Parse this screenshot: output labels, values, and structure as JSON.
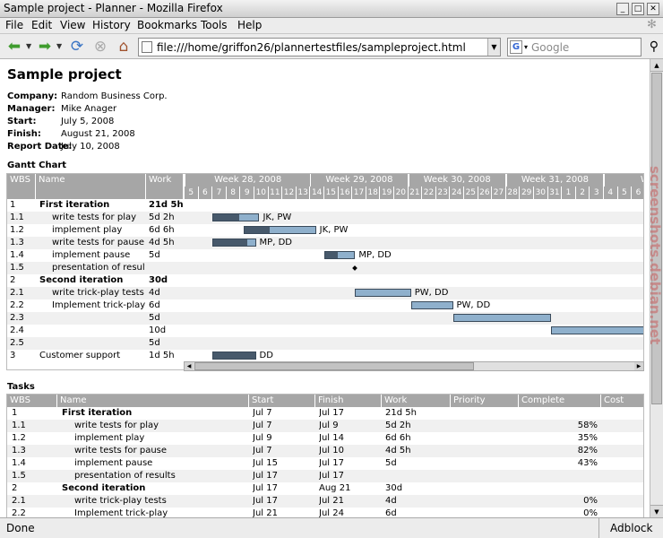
{
  "window": {
    "title": "Sample project - Planner - Mozilla Firefox"
  },
  "menu": [
    "File",
    "Edit",
    "View",
    "History",
    "Bookmarks",
    "Tools",
    "Help"
  ],
  "nav": {
    "url": "file:///home/griffon26/plannertestfiles/sampleproject.html",
    "search_placeholder": "Google",
    "search_engine_glyph": "G"
  },
  "project": {
    "title": "Sample project",
    "fields": [
      {
        "label": "Company:",
        "value": "Random Business Corp."
      },
      {
        "label": "Manager:",
        "value": "Mike Anager"
      },
      {
        "label": "Start:",
        "value": "July 5, 2008"
      },
      {
        "label": "Finish:",
        "value": "August 21, 2008"
      },
      {
        "label": "Report Date:",
        "value": "July 10, 2008"
      }
    ]
  },
  "gantt": {
    "heading": "Gantt Chart",
    "columns": [
      "WBS",
      "Name",
      "Work"
    ],
    "weeks": [
      "Week 28, 2008",
      "Week 29, 2008",
      "Week 30, 2008",
      "Week 31, 2008",
      "Week"
    ],
    "days": [
      "5",
      "6",
      "7",
      "8",
      "9",
      "10",
      "11",
      "12",
      "13",
      "14",
      "15",
      "16",
      "17",
      "18",
      "19",
      "20",
      "21",
      "22",
      "23",
      "24",
      "25",
      "26",
      "27",
      "28",
      "29",
      "30",
      "31",
      "1",
      "2",
      "3",
      "4",
      "5",
      "6"
    ],
    "rows": [
      {
        "wbs": "1",
        "name": "First iteration",
        "work": "21d 5h",
        "bold": true,
        "indent": 0
      },
      {
        "wbs": "1.1",
        "name": "write tests for play",
        "work": "5d 2h",
        "indent": 2,
        "start": 2,
        "len": 3.35,
        "done": 0.58,
        "res": "JK, PW"
      },
      {
        "wbs": "1.2",
        "name": "implement play",
        "work": "6d 6h",
        "indent": 2,
        "start": 4.25,
        "len": 5.15,
        "done": 0.35,
        "res": "JK, PW"
      },
      {
        "wbs": "1.3",
        "name": "write tests for pause",
        "work": "4d 5h",
        "indent": 2,
        "start": 2,
        "len": 3.1,
        "done": 0.82,
        "res": "MP, DD"
      },
      {
        "wbs": "1.4",
        "name": "implement pause",
        "work": "5d",
        "indent": 2,
        "start": 10,
        "len": 2.2,
        "done": 0.43,
        "res": "MP, DD"
      },
      {
        "wbs": "1.5",
        "name": "presentation of results",
        "work": "",
        "indent": 2,
        "milestone": 12.05
      },
      {
        "wbs": "2",
        "name": "Second iteration",
        "work": "30d",
        "bold": true,
        "indent": 0
      },
      {
        "wbs": "2.1",
        "name": "write trick-play tests",
        "work": "4d",
        "indent": 2,
        "start": 12.2,
        "len": 4,
        "done": 0,
        "res": "PW, DD"
      },
      {
        "wbs": "2.2",
        "name": "Implement trick-play",
        "work": "6d",
        "indent": 2,
        "start": 16.2,
        "len": 3,
        "done": 0,
        "res": "PW, DD"
      },
      {
        "wbs": "2.3",
        "name": "",
        "work": "5d",
        "indent": 0,
        "start": 19.2,
        "len": 7,
        "done": 0
      },
      {
        "wbs": "2.4",
        "name": "",
        "work": "10d",
        "indent": 0,
        "start": 26.2,
        "len": 7.5,
        "done": 0
      },
      {
        "wbs": "2.5",
        "name": "",
        "work": "5d",
        "indent": 0
      },
      {
        "wbs": "3",
        "name": "Customer support",
        "work": "1d 5h",
        "indent": 0,
        "start": 2,
        "len": 3.1,
        "done": 1,
        "res": "DD"
      }
    ]
  },
  "tasks": {
    "heading": "Tasks",
    "columns": [
      "WBS",
      "Name",
      "Start",
      "Finish",
      "Work",
      "Priority",
      "Complete",
      "Cost"
    ],
    "rows": [
      {
        "wbs": "1",
        "name": "First iteration",
        "start": "Jul 7",
        "finish": "Jul 17",
        "work": "21d 5h",
        "complete": "",
        "bold": true,
        "indent": 0
      },
      {
        "wbs": "1.1",
        "name": "write tests for play",
        "start": "Jul 7",
        "finish": "Jul 9",
        "work": "5d 2h",
        "complete": "58%",
        "indent": 2
      },
      {
        "wbs": "1.2",
        "name": "implement play",
        "start": "Jul 9",
        "finish": "Jul 14",
        "work": "6d 6h",
        "complete": "35%",
        "indent": 2
      },
      {
        "wbs": "1.3",
        "name": "write tests for pause",
        "start": "Jul 7",
        "finish": "Jul 10",
        "work": "4d 5h",
        "complete": "82%",
        "indent": 2
      },
      {
        "wbs": "1.4",
        "name": "implement pause",
        "start": "Jul 15",
        "finish": "Jul 17",
        "work": "5d",
        "complete": "43%",
        "indent": 2
      },
      {
        "wbs": "1.5",
        "name": "presentation of results",
        "start": "Jul 17",
        "finish": "Jul 17",
        "work": "",
        "complete": "",
        "indent": 2
      },
      {
        "wbs": "2",
        "name": "Second iteration",
        "start": "Jul 17",
        "finish": "Aug 21",
        "work": "30d",
        "complete": "",
        "bold": true,
        "indent": 0
      },
      {
        "wbs": "2.1",
        "name": "write trick-play tests",
        "start": "Jul 17",
        "finish": "Jul 21",
        "work": "4d",
        "complete": "0%",
        "indent": 2
      },
      {
        "wbs": "2.2",
        "name": "Implement trick-play",
        "start": "Jul 21",
        "finish": "Jul 24",
        "work": "6d",
        "complete": "0%",
        "indent": 2
      }
    ]
  },
  "status": {
    "text": "Done",
    "addon": "Adblock"
  },
  "watermark": "screenshots.debian.net",
  "colors": {
    "header_bg": "#a6a6a6",
    "bar_fill": "#8fb0cc",
    "bar_done": "#47596b"
  }
}
